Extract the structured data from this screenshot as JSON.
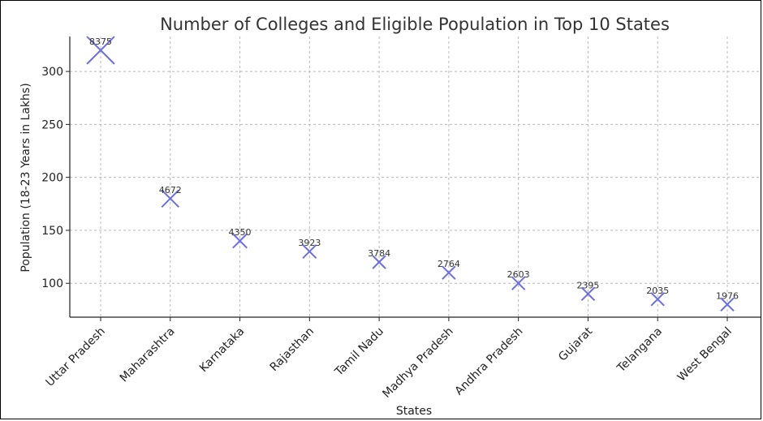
{
  "chart_data": {
    "type": "scatter",
    "title": "Number of Colleges and Eligible Population in Top 10 States",
    "xlabel": "States",
    "ylabel": "Population (18-23 Years in Lakhs)",
    "categories": [
      "Uttar Pradesh",
      "Maharashtra",
      "Karnataka",
      "Rajasthan",
      "Tamil Nadu",
      "Madhya Pradesh",
      "Andhra Pradesh",
      "Gujarat",
      "Telangana",
      "West Bengal"
    ],
    "series": [
      {
        "values": [
          320,
          180,
          140,
          130,
          120,
          110,
          100,
          90,
          85,
          80
        ],
        "labels": [
          "8375",
          "4672",
          "4350",
          "3923",
          "3784",
          "2764",
          "2603",
          "2395",
          "2035",
          "1976"
        ]
      }
    ],
    "yticks": [
      100,
      150,
      200,
      250,
      300
    ],
    "ylim": [
      68,
      333
    ],
    "grid": true,
    "marker": "x",
    "color": "#6b6ee8"
  }
}
